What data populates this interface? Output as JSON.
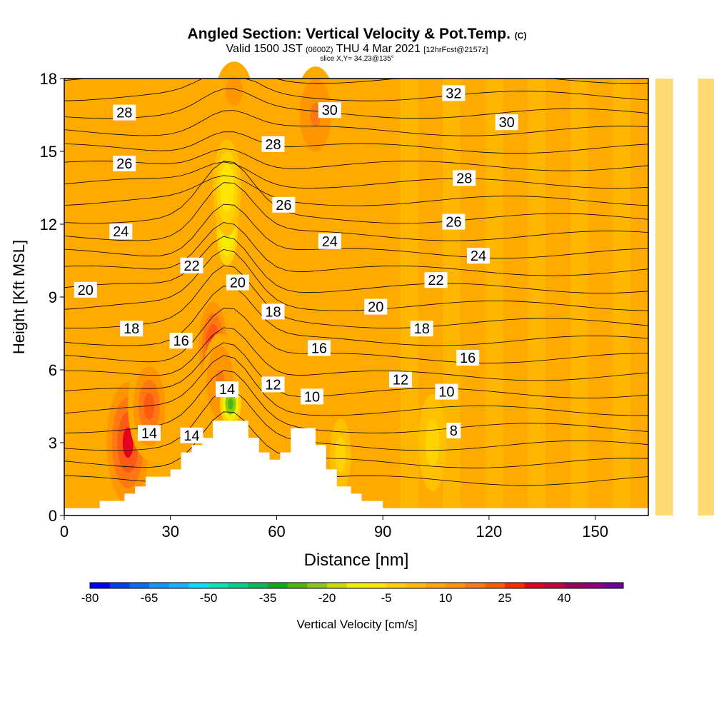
{
  "header": {
    "title": "Angled Section: Vertical Velocity & Pot.Temp.",
    "title_suffix": "(C)",
    "subtitle_valid": "Valid 1500 JST",
    "subtitle_z": "(0600Z)",
    "subtitle_date": "THU 4 Mar 2021",
    "subtitle_fcst": "[12hrFcst@2157z]",
    "slice": "slice X,Y= 34,23@135°"
  },
  "chart_data": {
    "type": "heatmap",
    "xlabel": "Distance [nm]",
    "ylabel": "Height [Kft MSL]",
    "xlim": [
      0,
      165
    ],
    "ylim": [
      0,
      18
    ],
    "x_ticks": [
      0,
      30,
      60,
      90,
      120,
      150
    ],
    "y_ticks": [
      0,
      3,
      6,
      9,
      12,
      15,
      18
    ],
    "colorbar": {
      "label": "Vertical Velocity [cm/s]",
      "tick_labels": [
        "-80",
        "-65",
        "-50",
        "-35",
        "-20",
        "-5",
        "10",
        "25",
        "40"
      ],
      "tick_values": [
        -80,
        -65,
        -50,
        -35,
        -20,
        -5,
        10,
        25,
        40
      ],
      "levels": [
        -80,
        -75,
        -70,
        -65,
        -60,
        -55,
        -50,
        -45,
        -40,
        -35,
        -30,
        -25,
        -20,
        -15,
        -10,
        -5,
        0,
        5,
        10,
        15,
        20,
        25,
        30,
        35,
        40,
        45,
        50
      ],
      "colors": [
        "#0000ff",
        "#0a3cff",
        "#1466ff",
        "#1e90ff",
        "#14b4ff",
        "#00e0ff",
        "#00e6b4",
        "#00d28c",
        "#00be5a",
        "#14aa28",
        "#50b414",
        "#8cc814",
        "#c8dc00",
        "#f0f000",
        "#ffe600",
        "#ffd200",
        "#ffc000",
        "#ffaa00",
        "#ff9600",
        "#ff7814",
        "#ff5a14",
        "#ff2800",
        "#e6001e",
        "#c8003c",
        "#a0005a",
        "#8c0078",
        "#6e0096"
      ]
    },
    "terrain_profile": [
      [
        0,
        0.3
      ],
      [
        10,
        0.3
      ],
      [
        10,
        0.6
      ],
      [
        17,
        0.6
      ],
      [
        17,
        0.9
      ],
      [
        20,
        0.9
      ],
      [
        20,
        1.2
      ],
      [
        23,
        1.2
      ],
      [
        23,
        1.6
      ],
      [
        30,
        1.6
      ],
      [
        30,
        1.9
      ],
      [
        33,
        1.9
      ],
      [
        33,
        2.6
      ],
      [
        36,
        2.6
      ],
      [
        36,
        2.9
      ],
      [
        39,
        2.9
      ],
      [
        39,
        3.2
      ],
      [
        42,
        3.2
      ],
      [
        42,
        3.9
      ],
      [
        52,
        3.9
      ],
      [
        52,
        3.2
      ],
      [
        55,
        3.2
      ],
      [
        55,
        2.6
      ],
      [
        58,
        2.6
      ],
      [
        58,
        2.3
      ],
      [
        61,
        2.3
      ],
      [
        61,
        2.6
      ],
      [
        64,
        2.6
      ],
      [
        64,
        3.6
      ],
      [
        71,
        3.6
      ],
      [
        71,
        2.9
      ],
      [
        74,
        2.9
      ],
      [
        74,
        1.9
      ],
      [
        77,
        1.9
      ],
      [
        77,
        1.2
      ],
      [
        81,
        1.2
      ],
      [
        81,
        0.9
      ],
      [
        84,
        0.9
      ],
      [
        84,
        0.6
      ],
      [
        90,
        0.6
      ],
      [
        90,
        0.3
      ],
      [
        165,
        0.3
      ]
    ],
    "wind_features": [
      {
        "x": 18,
        "y": 3.0,
        "value": 30,
        "radius_x": 6,
        "radius_y": 2.5
      },
      {
        "x": 24,
        "y": 4.5,
        "value": 22,
        "radius_x": 6,
        "radius_y": 2.2
      },
      {
        "x": 42,
        "y": 7.0,
        "value": 26,
        "radius_x": 4,
        "radius_y": 1.8
      },
      {
        "x": 44,
        "y": 5.5,
        "value": 15,
        "radius_x": 5,
        "radius_y": 2
      },
      {
        "x": 47,
        "y": 4.6,
        "value": -30,
        "radius_x": 3,
        "radius_y": 0.9
      },
      {
        "x": 46,
        "y": 11.8,
        "value": -18,
        "radius_x": 3,
        "radius_y": 1.5
      },
      {
        "x": 46,
        "y": 13.5,
        "value": -10,
        "radius_x": 4,
        "radius_y": 2
      },
      {
        "x": 71,
        "y": 16.5,
        "value": 15,
        "radius_x": 6,
        "radius_y": 2
      },
      {
        "x": 48,
        "y": 17.5,
        "value": 12,
        "radius_x": 5,
        "radius_y": 1.2
      },
      {
        "x": 104,
        "y": 3.0,
        "value": -5,
        "radius_x": 4,
        "radius_y": 2
      },
      {
        "x": 78,
        "y": 2.5,
        "value": -5,
        "radius_x": 3,
        "radius_y": 1.5
      }
    ],
    "contour_labels": [
      {
        "text": "32",
        "x": 110,
        "y": 17.4
      },
      {
        "text": "30",
        "x": 75,
        "y": 16.7
      },
      {
        "text": "30",
        "x": 125,
        "y": 16.2
      },
      {
        "text": "28",
        "x": 17,
        "y": 16.6
      },
      {
        "text": "28",
        "x": 59,
        "y": 15.3
      },
      {
        "text": "28",
        "x": 113,
        "y": 13.9
      },
      {
        "text": "26",
        "x": 17,
        "y": 14.5
      },
      {
        "text": "26",
        "x": 62,
        "y": 12.8
      },
      {
        "text": "26",
        "x": 110,
        "y": 12.1
      },
      {
        "text": "24",
        "x": 16,
        "y": 11.7
      },
      {
        "text": "24",
        "x": 75,
        "y": 11.3
      },
      {
        "text": "24",
        "x": 117,
        "y": 10.7
      },
      {
        "text": "22",
        "x": 36,
        "y": 10.3
      },
      {
        "text": "22",
        "x": 105,
        "y": 9.7
      },
      {
        "text": "20",
        "x": 6,
        "y": 9.3
      },
      {
        "text": "20",
        "x": 49,
        "y": 9.6
      },
      {
        "text": "20",
        "x": 88,
        "y": 8.6
      },
      {
        "text": "18",
        "x": 19,
        "y": 7.7
      },
      {
        "text": "18",
        "x": 59,
        "y": 8.4
      },
      {
        "text": "18",
        "x": 101,
        "y": 7.7
      },
      {
        "text": "16",
        "x": 33,
        "y": 7.2
      },
      {
        "text": "16",
        "x": 72,
        "y": 6.9
      },
      {
        "text": "16",
        "x": 114,
        "y": 6.5
      },
      {
        "text": "14",
        "x": 46,
        "y": 5.2
      },
      {
        "text": "14",
        "x": 24,
        "y": 3.4
      },
      {
        "text": "14",
        "x": 36,
        "y": 3.3
      },
      {
        "text": "12",
        "x": 59,
        "y": 5.4
      },
      {
        "text": "12",
        "x": 95,
        "y": 5.6
      },
      {
        "text": "10",
        "x": 70,
        "y": 4.9
      },
      {
        "text": "10",
        "x": 108,
        "y": 5.1
      },
      {
        "text": "8",
        "x": 110,
        "y": 3.5
      }
    ],
    "grid": false
  }
}
